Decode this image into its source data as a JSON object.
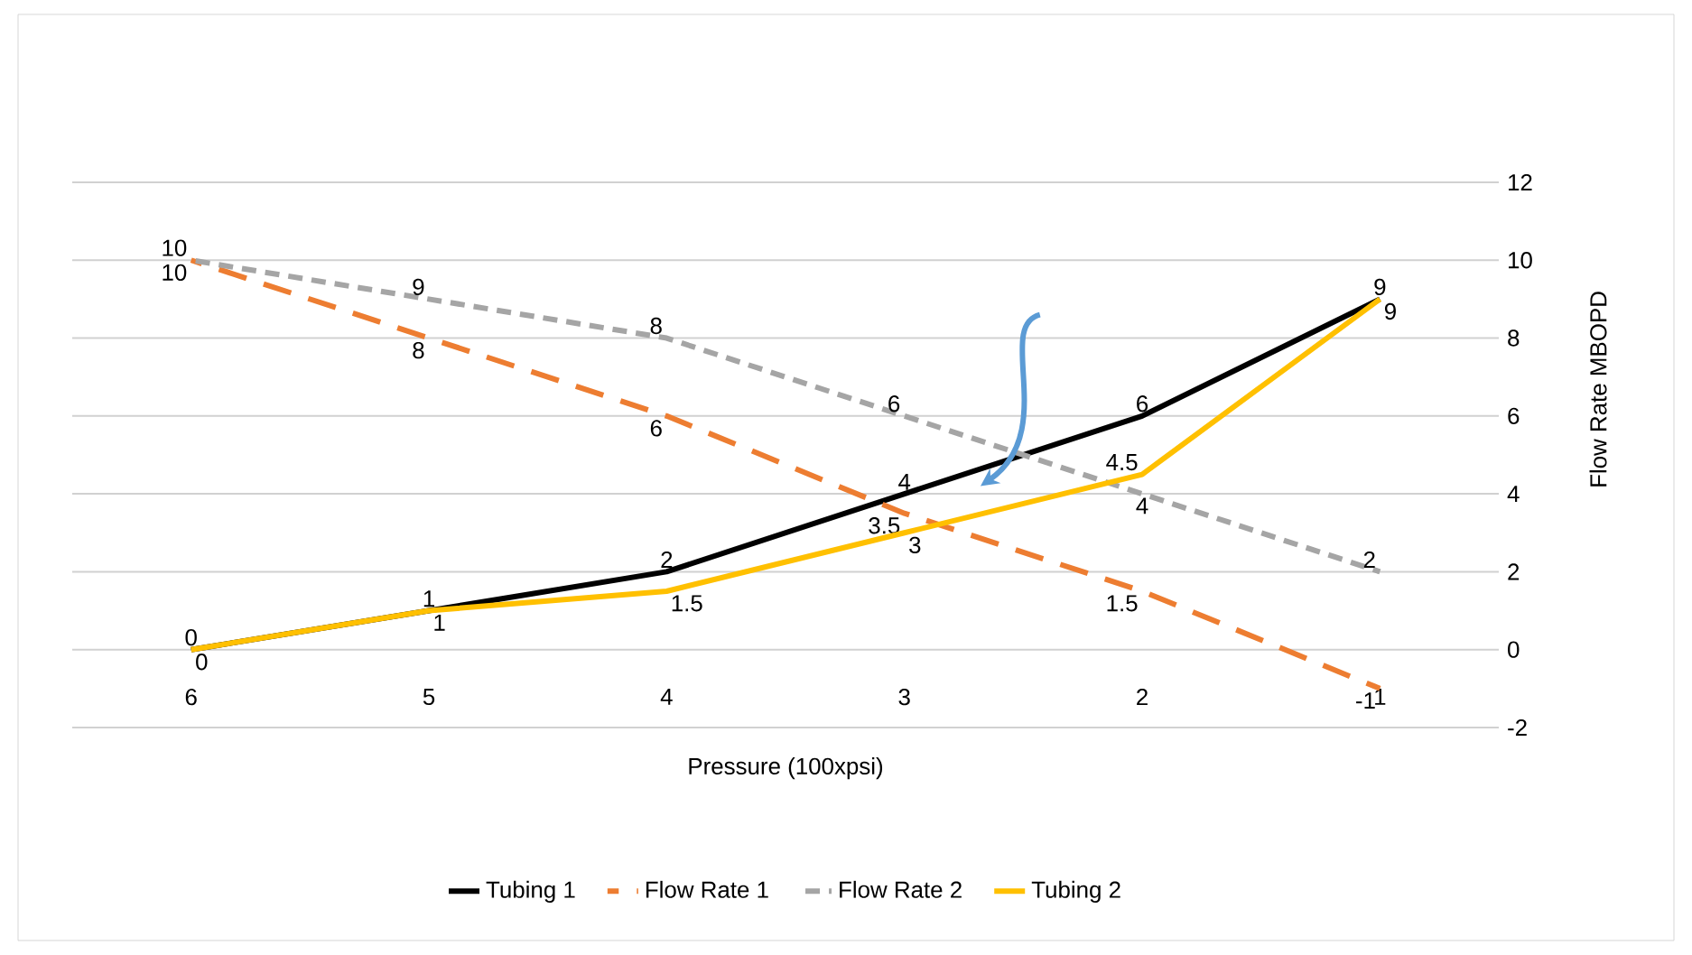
{
  "chart_data": {
    "type": "line",
    "xlabel": "Pressure (100xpsi)",
    "ylabel": "Flow Rate MBOPD",
    "categories": [
      "6",
      "5",
      "4",
      "3",
      "2",
      "1"
    ],
    "ylim": [
      -2,
      12
    ],
    "yticks": [
      -2,
      0,
      2,
      4,
      6,
      8,
      10,
      12
    ],
    "grid": "y",
    "legend": "bottom",
    "data_labels": true,
    "marker": "none",
    "series": [
      {
        "name": "Tubing 1",
        "color": "#000000",
        "line_style": "solid",
        "values": [
          0,
          1,
          2,
          4,
          6,
          9
        ]
      },
      {
        "name": "Flow Rate 1",
        "color": "#ed7d31",
        "line_style": "dashed",
        "values": [
          10,
          8,
          6,
          3.5,
          1.5,
          -1
        ]
      },
      {
        "name": "Flow Rate 2",
        "color": "#a5a5a5",
        "line_style": "dotted",
        "values": [
          10,
          9,
          8,
          6,
          4,
          2
        ]
      },
      {
        "name": "Tubing 2",
        "color": "#ffc000",
        "line_style": "solid",
        "values": [
          0,
          1,
          1.5,
          3,
          4.5,
          9
        ]
      }
    ]
  }
}
